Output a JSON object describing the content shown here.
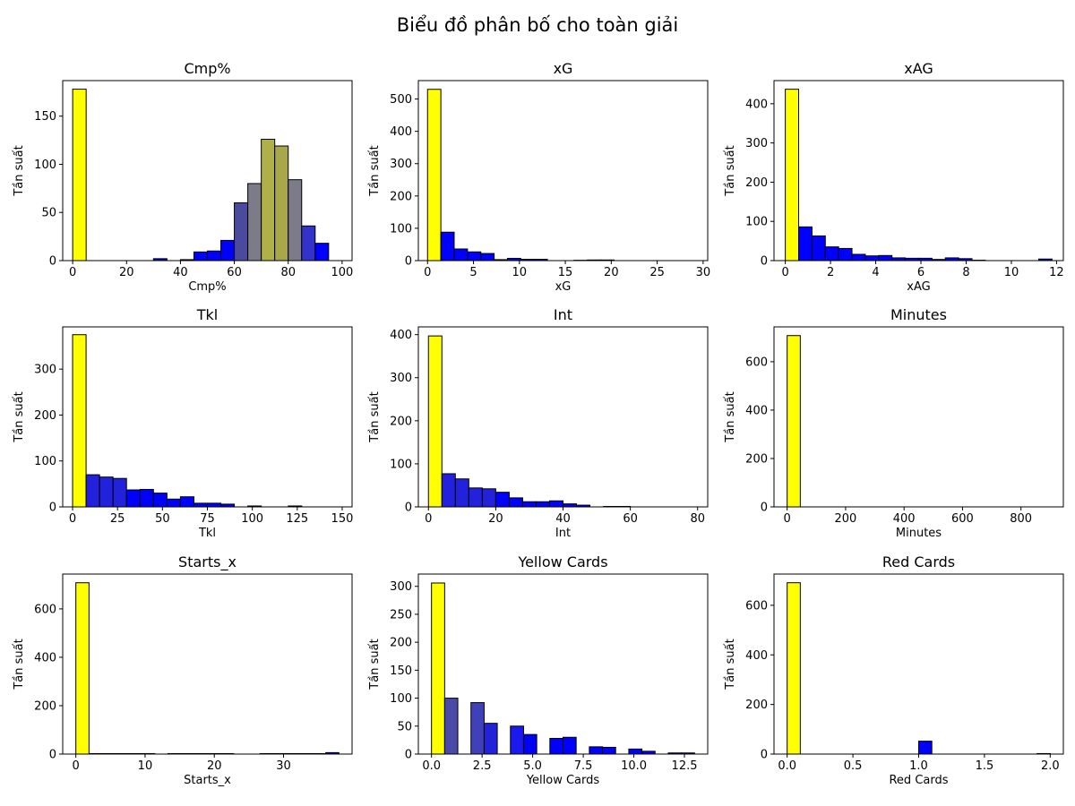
{
  "figure_title": "Biểu đồ phân bố cho toàn giải",
  "chart_data": [
    {
      "type": "bar",
      "title": "Cmp%",
      "xlabel": "Cmp%",
      "ylabel": "Tần suất",
      "xlim": [
        -3.7,
        103.7
      ],
      "ylim": [
        0,
        186.9
      ],
      "xticks": [
        0,
        20,
        40,
        60,
        80,
        100
      ],
      "yticks": [
        0,
        50,
        100,
        150
      ],
      "bin_edges": [
        0,
        5,
        10,
        15,
        20,
        25,
        30,
        35,
        40,
        45,
        50,
        55,
        60,
        65,
        70,
        75,
        80,
        85,
        90,
        95,
        100
      ],
      "values": [
        178,
        0,
        0,
        0,
        0,
        0,
        2,
        0,
        1,
        9,
        10,
        21,
        60,
        80,
        126,
        119,
        84,
        36,
        18,
        0
      ],
      "colors": [
        "#ffff00",
        "#0000ff",
        "#0000ff",
        "#0000ff",
        "#0000ff",
        "#0000ff",
        "#0000ff",
        "#0000ff",
        "#0000ff",
        "#0000ff",
        "#0000ff",
        "#0000ff",
        "#4a4a9e",
        "#7b7b8a",
        "#b0b04a",
        "#a8a84a",
        "#7b7b8a",
        "#3333cc",
        "#0000ff",
        "#0000ff"
      ]
    },
    {
      "type": "bar",
      "title": "xG",
      "xlabel": "xG",
      "ylabel": "Tần suất",
      "xlim": [
        -1.0,
        30.5
      ],
      "ylim": [
        0,
        557
      ],
      "xticks": [
        0,
        5,
        10,
        15,
        20,
        25,
        30
      ],
      "yticks": [
        0,
        100,
        200,
        300,
        400,
        500
      ],
      "bin_edges": [
        0,
        1.45,
        2.9,
        4.35,
        5.8,
        7.25,
        8.7,
        10.15,
        11.6,
        13.05,
        14.5,
        15.95,
        17.4,
        18.85,
        20.3,
        21.75,
        23.2,
        24.65,
        26.1,
        27.55,
        29.0
      ],
      "values": [
        530,
        88,
        36,
        27,
        22,
        3,
        7,
        4,
        4,
        0,
        0,
        1,
        2,
        2,
        0,
        0,
        0,
        0,
        0,
        0
      ],
      "colors": [
        "#ffff00",
        "#0000ff",
        "#0000ff",
        "#0000ff",
        "#0000ff",
        "#0000ff",
        "#0000ff",
        "#0000ff",
        "#0000ff",
        "#0000ff",
        "#0000ff",
        "#0000ff",
        "#0000ff",
        "#0000ff",
        "#0000ff",
        "#0000ff",
        "#0000ff",
        "#0000ff",
        "#0000ff",
        "#0000ff"
      ]
    },
    {
      "type": "bar",
      "title": "xAG",
      "xlabel": "xAG",
      "ylabel": "Tần suất",
      "xlim": [
        -0.5,
        12.3
      ],
      "ylim": [
        0,
        459
      ],
      "xticks": [
        0,
        2,
        4,
        6,
        8,
        10,
        12
      ],
      "yticks": [
        0,
        100,
        200,
        300,
        400
      ],
      "bin_edges": [
        0,
        0.59,
        1.18,
        1.77,
        2.36,
        2.95,
        3.54,
        4.13,
        4.72,
        5.31,
        5.9,
        6.49,
        7.08,
        7.67,
        8.26,
        8.85,
        9.44,
        10.03,
        10.62,
        11.21,
        11.8
      ],
      "values": [
        437,
        86,
        63,
        35,
        31,
        16,
        12,
        13,
        7,
        6,
        6,
        3,
        7,
        5,
        1,
        0,
        0,
        0,
        0,
        4
      ],
      "colors": [
        "#ffff00",
        "#0000ff",
        "#0000ff",
        "#0000ff",
        "#0000ff",
        "#0000ff",
        "#0000ff",
        "#0000ff",
        "#0000ff",
        "#0000ff",
        "#0000ff",
        "#0000ff",
        "#0000ff",
        "#0000ff",
        "#0000ff",
        "#0000ff",
        "#0000ff",
        "#0000ff",
        "#0000ff",
        "#0000ff"
      ]
    },
    {
      "type": "bar",
      "title": "Tkl",
      "xlabel": "Tkl",
      "ylabel": "Tần suất",
      "xlim": [
        -5.5,
        155.5
      ],
      "ylim": [
        0,
        392
      ],
      "xticks": [
        0,
        25,
        50,
        75,
        100,
        125,
        150
      ],
      "yticks": [
        0,
        100,
        200,
        300
      ],
      "bin_edges": [
        0,
        7.5,
        15,
        22.5,
        30,
        37.5,
        45,
        52.5,
        60,
        67.5,
        75,
        82.5,
        90,
        97.5,
        105,
        112.5,
        120,
        127.5,
        135,
        142.5,
        150
      ],
      "values": [
        375,
        70,
        65,
        62,
        37,
        38,
        30,
        17,
        22,
        8,
        8,
        6,
        0,
        2,
        0,
        0,
        2,
        0,
        0,
        0
      ],
      "colors": [
        "#ffff00",
        "#2222dd",
        "#2222dd",
        "#2222dd",
        "#0000ff",
        "#0000ff",
        "#0000ff",
        "#0000ff",
        "#0000ff",
        "#0000ff",
        "#0000ff",
        "#0000ff",
        "#0000ff",
        "#0000ff",
        "#0000ff",
        "#0000ff",
        "#0000ff",
        "#0000ff",
        "#0000ff",
        "#0000ff"
      ]
    },
    {
      "type": "bar",
      "title": "Int",
      "xlabel": "Int",
      "ylabel": "Tần suất",
      "xlim": [
        -3.0,
        83.0
      ],
      "ylim": [
        0,
        418
      ],
      "xticks": [
        0,
        20,
        40,
        60,
        80
      ],
      "yticks": [
        0,
        100,
        200,
        300,
        400
      ],
      "bin_edges": [
        0,
        4,
        8,
        12,
        16,
        20,
        24,
        28,
        32,
        36,
        40,
        44,
        48,
        52,
        56,
        60,
        64,
        68,
        72,
        76,
        80
      ],
      "values": [
        397,
        77,
        65,
        44,
        42,
        34,
        21,
        12,
        12,
        14,
        7,
        4,
        0,
        1,
        1,
        0,
        0,
        0,
        0,
        0
      ],
      "colors": [
        "#ffff00",
        "#2222dd",
        "#2222dd",
        "#2222dd",
        "#2222dd",
        "#0000ff",
        "#0000ff",
        "#0000ff",
        "#0000ff",
        "#0000ff",
        "#0000ff",
        "#0000ff",
        "#0000ff",
        "#0000ff",
        "#0000ff",
        "#0000ff",
        "#0000ff",
        "#0000ff",
        "#0000ff",
        "#0000ff"
      ]
    },
    {
      "type": "bar",
      "title": "Minutes",
      "xlabel": "Minutes",
      "ylabel": "Tần suất",
      "xlim": [
        -45,
        945
      ],
      "ylim": [
        0,
        744
      ],
      "xticks": [
        0,
        200,
        400,
        600,
        800
      ],
      "yticks": [
        0,
        200,
        400,
        600
      ],
      "bin_edges": [
        0,
        45,
        90,
        135,
        180,
        225,
        270,
        315,
        360,
        405,
        450,
        495,
        540,
        585,
        630,
        675,
        720,
        765,
        810,
        855,
        900
      ],
      "values": [
        708,
        0,
        0,
        0,
        0,
        0,
        0,
        0,
        0,
        0,
        0,
        0,
        0,
        0,
        0,
        0,
        0,
        0,
        0,
        0
      ],
      "colors": [
        "#ffff00",
        "#0000ff",
        "#0000ff",
        "#0000ff",
        "#0000ff",
        "#0000ff",
        "#0000ff",
        "#0000ff",
        "#0000ff",
        "#0000ff",
        "#0000ff",
        "#0000ff",
        "#0000ff",
        "#0000ff",
        "#0000ff",
        "#0000ff",
        "#0000ff",
        "#0000ff",
        "#0000ff",
        "#0000ff"
      ]
    },
    {
      "type": "bar",
      "title": "Starts_x",
      "xlabel": "Starts_x",
      "ylabel": "Tần suất",
      "xlim": [
        -1.9,
        39.9
      ],
      "ylim": [
        0,
        744
      ],
      "xticks": [
        0,
        10,
        20,
        30
      ],
      "yticks": [
        0,
        200,
        400,
        600
      ],
      "bin_edges": [
        0,
        1.9,
        3.8,
        5.7,
        7.6,
        9.5,
        11.4,
        13.3,
        15.2,
        17.1,
        19.0,
        20.9,
        22.8,
        24.7,
        26.6,
        28.5,
        30.4,
        32.3,
        34.2,
        36.1,
        38.0
      ],
      "values": [
        708,
        2,
        2,
        2,
        2,
        2,
        0,
        2,
        2,
        2,
        2,
        2,
        0,
        0,
        2,
        2,
        2,
        2,
        2,
        6
      ],
      "colors": [
        "#ffff00",
        "#0000ff",
        "#0000ff",
        "#0000ff",
        "#0000ff",
        "#0000ff",
        "#0000ff",
        "#0000ff",
        "#0000ff",
        "#0000ff",
        "#0000ff",
        "#0000ff",
        "#0000ff",
        "#0000ff",
        "#0000ff",
        "#0000ff",
        "#0000ff",
        "#0000ff",
        "#0000ff",
        "#0000ff"
      ]
    },
    {
      "type": "bar",
      "title": "Yellow Cards",
      "xlabel": "Yellow Cards",
      "ylabel": "Tần suất",
      "xlim": [
        -0.65,
        13.65
      ],
      "ylim": [
        0,
        322
      ],
      "xticks": [
        0.0,
        2.5,
        5.0,
        7.5,
        10.0,
        12.5
      ],
      "yticks": [
        0,
        50,
        100,
        150,
        200,
        250,
        300
      ],
      "bin_edges": [
        0,
        0.65,
        1.3,
        1.95,
        2.6,
        3.25,
        3.9,
        4.55,
        5.2,
        5.85,
        6.5,
        7.15,
        7.8,
        8.45,
        9.1,
        9.75,
        10.4,
        11.05,
        11.7,
        12.35,
        13.0
      ],
      "values": [
        306,
        100,
        0,
        92,
        55,
        0,
        50,
        35,
        0,
        28,
        30,
        0,
        13,
        12,
        0,
        9,
        5,
        0,
        2,
        2
      ],
      "colors": [
        "#ffff00",
        "#4a4aa8",
        "#0000ff",
        "#4040b8",
        "#2222dd",
        "#0000ff",
        "#1a1aee",
        "#0000ff",
        "#0000ff",
        "#0000ff",
        "#0000ff",
        "#0000ff",
        "#0000ff",
        "#0000ff",
        "#0000ff",
        "#0000ff",
        "#0000ff",
        "#0000ff",
        "#0000ff",
        "#0000ff"
      ]
    },
    {
      "type": "bar",
      "title": "Red Cards",
      "xlabel": "Red Cards",
      "ylabel": "Tần suất",
      "xlim": [
        -0.1,
        2.1
      ],
      "ylim": [
        0,
        726
      ],
      "xticks": [
        0.0,
        0.5,
        1.0,
        1.5,
        2.0
      ],
      "yticks": [
        0,
        200,
        400,
        600
      ],
      "bin_edges": [
        0,
        0.1,
        0.2,
        0.3,
        0.4,
        0.5,
        0.6,
        0.7,
        0.8,
        0.9,
        1.0,
        1.1,
        1.2,
        1.3,
        1.4,
        1.5,
        1.6,
        1.7,
        1.8,
        1.9,
        2.0
      ],
      "values": [
        691,
        0,
        0,
        0,
        0,
        0,
        0,
        0,
        0,
        0,
        52,
        0,
        0,
        0,
        0,
        0,
        0,
        0,
        0,
        2
      ],
      "colors": [
        "#ffff00",
        "#0000ff",
        "#0000ff",
        "#0000ff",
        "#0000ff",
        "#0000ff",
        "#0000ff",
        "#0000ff",
        "#0000ff",
        "#0000ff",
        "#0000ff",
        "#0000ff",
        "#0000ff",
        "#0000ff",
        "#0000ff",
        "#0000ff",
        "#0000ff",
        "#0000ff",
        "#0000ff",
        "#0000ff"
      ]
    }
  ]
}
